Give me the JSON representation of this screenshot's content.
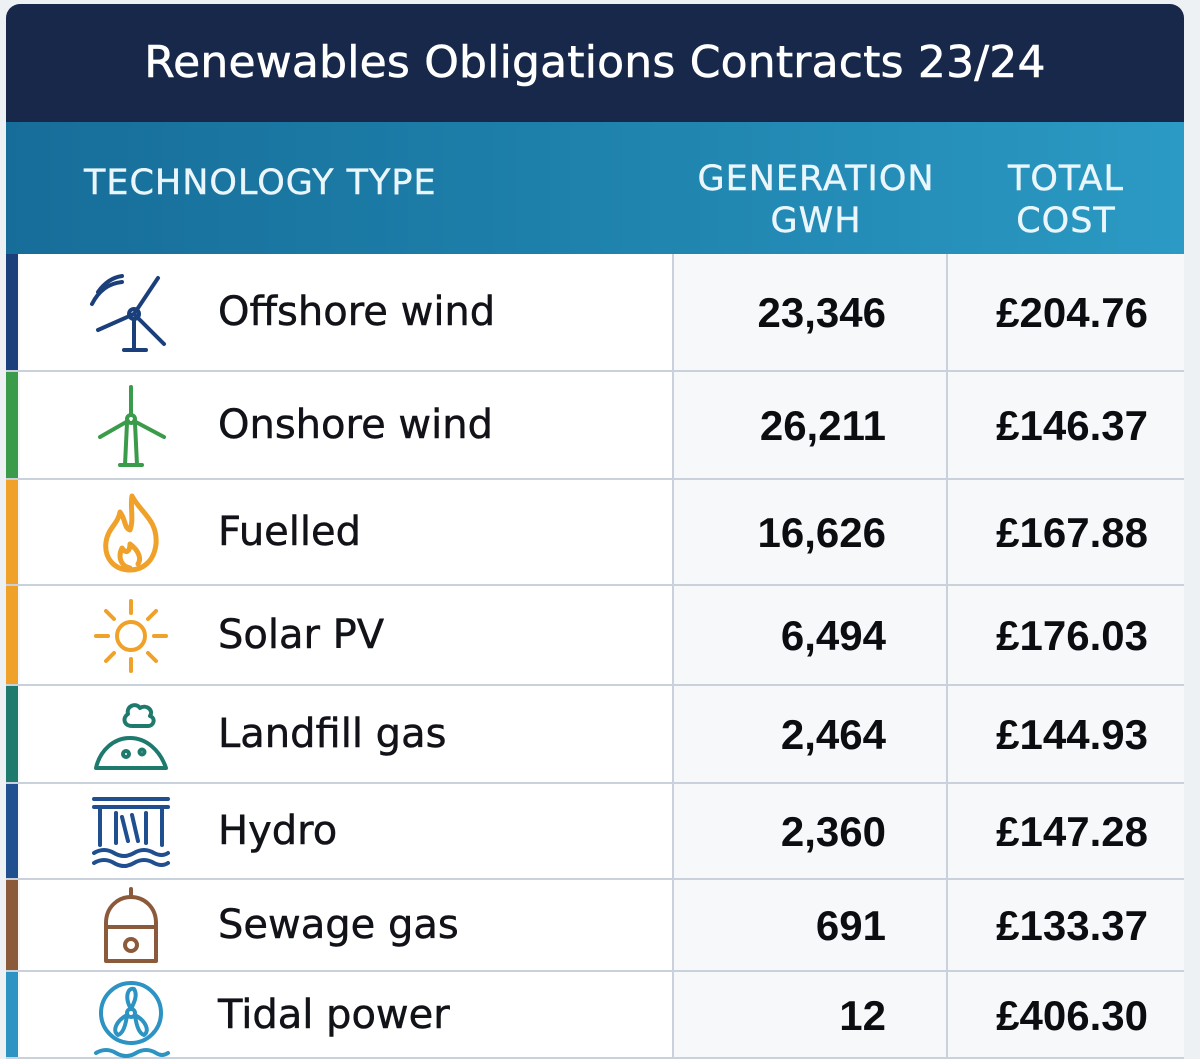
{
  "title": "Renewables Obligations Contracts 23/24",
  "headers": {
    "technology": "TECHNOLOGY TYPE",
    "generation_line1": "GENERATION",
    "generation_line2": "GWh",
    "cost_line1": "TOTAL",
    "cost_line2": "COST"
  },
  "colors": {
    "title_bar": "#17284a",
    "header_band_start": "#176d99",
    "header_band_end": "#2b9ac4"
  },
  "rows": [
    {
      "technology": "Offshore wind",
      "generation": "23,346",
      "cost": "£204.76",
      "icon": "offshore-wind-turbine-icon",
      "color": "#1b3f7a"
    },
    {
      "technology": "Onshore wind",
      "generation": "26,211",
      "cost": "£146.37",
      "icon": "onshore-wind-turbine-icon",
      "color": "#3a9b4a"
    },
    {
      "technology": "Fuelled",
      "generation": "16,626",
      "cost": "£167.88",
      "icon": "flame-icon",
      "color": "#f0a12a"
    },
    {
      "technology": "Solar PV",
      "generation": "6,494",
      "cost": "£176.03",
      "icon": "sun-icon",
      "color": "#f0a12a"
    },
    {
      "technology": "Landfill gas",
      "generation": "2,464",
      "cost": "£144.93",
      "icon": "landfill-mound-icon",
      "color": "#1f7a6e"
    },
    {
      "technology": "Hydro",
      "generation": "2,360",
      "cost": "£147.28",
      "icon": "hydro-dam-icon",
      "color": "#1f4f8f"
    },
    {
      "technology": "Sewage gas",
      "generation": "691",
      "cost": "£133.37",
      "icon": "sewage-tank-icon",
      "color": "#8a5a3b"
    },
    {
      "technology": "Tidal power",
      "generation": "12",
      "cost": "£406.30",
      "icon": "tidal-turbine-icon",
      "color": "#2c93c2"
    }
  ],
  "chart_data": {
    "type": "table",
    "title": "Renewables Obligations Contracts 23/24",
    "columns": [
      "TECHNOLOGY TYPE",
      "GENERATION GWh",
      "TOTAL COST"
    ],
    "rows": [
      [
        "Offshore wind",
        23346,
        "£204.76"
      ],
      [
        "Onshore wind",
        26211,
        "£146.37"
      ],
      [
        "Fuelled",
        16626,
        "£167.88"
      ],
      [
        "Solar PV",
        6494,
        "£176.03"
      ],
      [
        "Landfill gas",
        2464,
        "£144.93"
      ],
      [
        "Hydro",
        2360,
        "£147.28"
      ],
      [
        "Sewage gas",
        691,
        "£133.37"
      ],
      [
        "Tidal power",
        12,
        "£406.30"
      ]
    ]
  }
}
